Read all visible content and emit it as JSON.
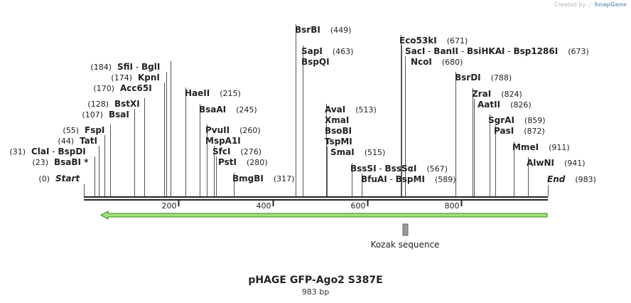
{
  "header": {
    "credit_text": "Created by",
    "brand": "SnapGene"
  },
  "plasmid": {
    "name": "pHAGE GFP-Ago2 S387E",
    "length_text": "983 bp",
    "length": 983
  },
  "feature": {
    "label": "Kozak sequence"
  },
  "scale": {
    "ticks": [
      {
        "value": 200,
        "label": "200"
      },
      {
        "value": 400,
        "label": "400"
      },
      {
        "value": 600,
        "label": "600"
      },
      {
        "value": 800,
        "label": "800"
      }
    ]
  },
  "sites": [
    {
      "id": "s-start",
      "pos": 0,
      "labels": [
        {
          "text": "Start",
          "bold": true,
          "italic": true
        }
      ],
      "num": "(0)",
      "side": "left"
    },
    {
      "id": "s-bsabi",
      "pos": 23,
      "labels": [
        {
          "text": "BsaBI *",
          "bold": true
        }
      ],
      "num": "(23)",
      "side": "left"
    },
    {
      "id": "s-clai",
      "pos": 31,
      "labels": [
        {
          "text": "ClaI",
          "bold": true
        },
        {
          "text": " - ",
          "bold": false
        },
        {
          "text": "BspDI",
          "bold": true
        }
      ],
      "num": "(31)",
      "side": "left"
    },
    {
      "id": "s-tati",
      "pos": 44,
      "labels": [
        {
          "text": "TatI",
          "bold": true
        }
      ],
      "num": "(44)",
      "side": "left"
    },
    {
      "id": "s-fspi",
      "pos": 55,
      "labels": [
        {
          "text": "FspI",
          "bold": true
        }
      ],
      "num": "(55)",
      "side": "left"
    },
    {
      "id": "s-bsai",
      "pos": 107,
      "labels": [
        {
          "text": "BsaI",
          "bold": true
        }
      ],
      "num": "(107)",
      "side": "left"
    },
    {
      "id": "s-bstxi",
      "pos": 128,
      "labels": [
        {
          "text": "BstXI",
          "bold": true
        }
      ],
      "num": "(128)",
      "side": "left"
    },
    {
      "id": "s-acc65i",
      "pos": 170,
      "labels": [
        {
          "text": "Acc65I",
          "bold": true
        }
      ],
      "num": "(170)",
      "side": "left"
    },
    {
      "id": "s-kpni",
      "pos": 174,
      "labels": [
        {
          "text": "KpnI",
          "bold": true
        }
      ],
      "num": "(174)",
      "side": "left"
    },
    {
      "id": "s-sfii",
      "pos": 184,
      "labels": [
        {
          "text": "SfiI",
          "bold": true
        },
        {
          "text": " - ",
          "bold": false
        },
        {
          "text": "BglI",
          "bold": true
        }
      ],
      "num": "(184)",
      "side": "left"
    },
    {
      "id": "s-haeii",
      "pos": 215,
      "labels": [
        {
          "text": "HaeII",
          "bold": true
        }
      ],
      "num": "(215)",
      "side": "right"
    },
    {
      "id": "s-bsaai",
      "pos": 245,
      "labels": [
        {
          "text": "BsaAI",
          "bold": true
        }
      ],
      "num": "(245)",
      "side": "right"
    },
    {
      "id": "s-pvuii",
      "pos": 260,
      "labels": [
        {
          "text": "PvuII",
          "bold": true
        }
      ],
      "num": "(260)",
      "side": "right"
    },
    {
      "id": "s-mspa1i",
      "pos": 260,
      "labels": [
        {
          "text": "MspA1I",
          "bold": true
        }
      ],
      "num": "",
      "side": "right"
    },
    {
      "id": "s-sfci",
      "pos": 276,
      "labels": [
        {
          "text": "SfcI",
          "bold": true
        }
      ],
      "num": "(276)",
      "side": "right"
    },
    {
      "id": "s-psti",
      "pos": 280,
      "labels": [
        {
          "text": "PstI",
          "bold": true
        }
      ],
      "num": "(280)",
      "side": "right"
    },
    {
      "id": "s-bmgbi",
      "pos": 317,
      "labels": [
        {
          "text": "BmgBI",
          "bold": true
        }
      ],
      "num": "(317)",
      "side": "right"
    },
    {
      "id": "s-bsrbi",
      "pos": 449,
      "labels": [
        {
          "text": "BsrBI",
          "bold": true
        }
      ],
      "num": "(449)",
      "side": "right"
    },
    {
      "id": "s-sapi",
      "pos": 463,
      "labels": [
        {
          "text": "SapI",
          "bold": true
        }
      ],
      "num": "(463)",
      "side": "right"
    },
    {
      "id": "s-bspqi",
      "pos": 463,
      "labels": [
        {
          "text": "BspQI",
          "bold": true
        }
      ],
      "num": "",
      "side": "right"
    },
    {
      "id": "s-avai",
      "pos": 513,
      "labels": [
        {
          "text": "AvaI",
          "bold": true
        }
      ],
      "num": "(513)",
      "side": "right"
    },
    {
      "id": "s-xmai",
      "pos": 513,
      "labels": [
        {
          "text": "XmaI",
          "bold": true
        }
      ],
      "num": "",
      "side": "right"
    },
    {
      "id": "s-bsobi",
      "pos": 513,
      "labels": [
        {
          "text": "BsoBI",
          "bold": true
        }
      ],
      "num": "",
      "side": "right"
    },
    {
      "id": "s-tspmi",
      "pos": 513,
      "labels": [
        {
          "text": "TspMI",
          "bold": true
        }
      ],
      "num": "",
      "side": "right"
    },
    {
      "id": "s-smai",
      "pos": 515,
      "labels": [
        {
          "text": "SmaI",
          "bold": true
        }
      ],
      "num": "(515)",
      "side": "right"
    },
    {
      "id": "s-bsssi",
      "pos": 567,
      "labels": [
        {
          "text": "BssSI",
          "bold": true
        },
        {
          "text": " - ",
          "bold": false
        },
        {
          "text": "BssSαI",
          "bold": true
        }
      ],
      "num": "(567)",
      "side": "right"
    },
    {
      "id": "s-bfuai",
      "pos": 589,
      "labels": [
        {
          "text": "BfuAI",
          "bold": true
        },
        {
          "text": " - ",
          "bold": false
        },
        {
          "text": "BspMI",
          "bold": true
        }
      ],
      "num": "(589)",
      "side": "right"
    },
    {
      "id": "s-eco53ki",
      "pos": 671,
      "labels": [
        {
          "text": "Eco53kI",
          "bold": true
        }
      ],
      "num": "(671)",
      "side": "right"
    },
    {
      "id": "s-saci",
      "pos": 673,
      "labels": [
        {
          "text": "SacI",
          "bold": true
        },
        {
          "text": " - ",
          "bold": false
        },
        {
          "text": "BanII",
          "bold": true
        },
        {
          "text": " - ",
          "bold": false
        },
        {
          "text": "BsiHKAI",
          "bold": true
        },
        {
          "text": " - ",
          "bold": false
        },
        {
          "text": "Bsp1286I",
          "bold": true
        }
      ],
      "num": "(673)",
      "side": "right"
    },
    {
      "id": "s-ncoi",
      "pos": 680,
      "labels": [
        {
          "text": "NcoI",
          "bold": true
        }
      ],
      "num": "(680)",
      "side": "right"
    },
    {
      "id": "s-bsrdi",
      "pos": 788,
      "labels": [
        {
          "text": "BsrDI",
          "bold": true
        }
      ],
      "num": "(788)",
      "side": "right"
    },
    {
      "id": "s-zrai",
      "pos": 824,
      "labels": [
        {
          "text": "ZraI",
          "bold": true
        }
      ],
      "num": "(824)",
      "side": "right"
    },
    {
      "id": "s-aatii",
      "pos": 826,
      "labels": [
        {
          "text": "AatII",
          "bold": true
        }
      ],
      "num": "(826)",
      "side": "right"
    },
    {
      "id": "s-sgrai",
      "pos": 859,
      "labels": [
        {
          "text": "SgrAI",
          "bold": true
        }
      ],
      "num": "(859)",
      "side": "right"
    },
    {
      "id": "s-pasi",
      "pos": 872,
      "labels": [
        {
          "text": "PasI",
          "bold": true
        }
      ],
      "num": "(872)",
      "side": "right"
    },
    {
      "id": "s-mmei",
      "pos": 911,
      "labels": [
        {
          "text": "MmeI",
          "bold": true
        }
      ],
      "num": "(911)",
      "side": "right"
    },
    {
      "id": "s-alwni",
      "pos": 941,
      "labels": [
        {
          "text": "AlwNI",
          "bold": true
        }
      ],
      "num": "(941)",
      "side": "right"
    },
    {
      "id": "s-end",
      "pos": 983,
      "labels": [
        {
          "text": "End",
          "bold": true,
          "italic": true
        }
      ],
      "num": "(983)",
      "side": "right"
    }
  ],
  "colors": {
    "backbone": "#222222",
    "gfp_fill": "#9ee07a",
    "gfp_stroke": "#3a8a1e",
    "feature_box": "#9a9a9a",
    "lines": "#555555"
  }
}
